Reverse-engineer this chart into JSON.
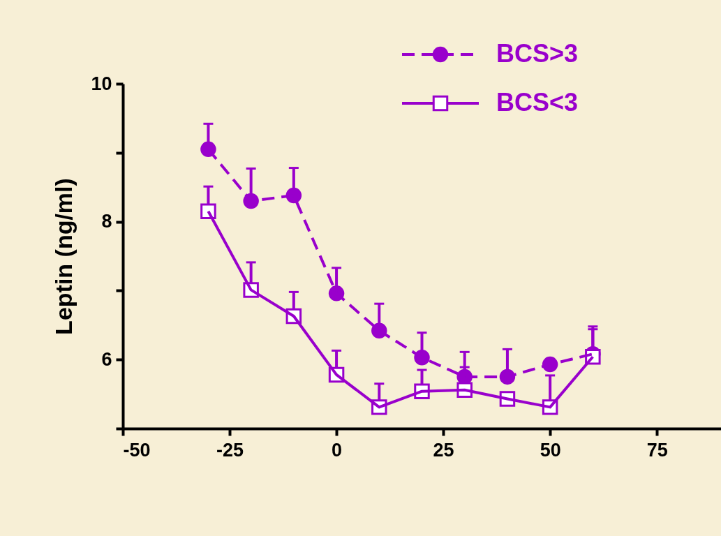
{
  "chart_data": {
    "type": "line",
    "ylabel": "Leptin (ng/ml)",
    "x": [
      -30,
      -20,
      -10,
      0,
      10,
      20,
      30,
      40,
      50,
      60
    ],
    "xlim": [
      -50,
      90
    ],
    "xticks": [
      -50,
      -25,
      0,
      25,
      50,
      75
    ],
    "ylim": [
      5,
      10
    ],
    "yticks": [
      {
        "value": 5,
        "label": null
      },
      6,
      {
        "value": 7,
        "label": null
      },
      8,
      {
        "value": 9,
        "label": null
      },
      10
    ],
    "grid": false,
    "legend": "top right",
    "series": [
      {
        "name": "BCS>3",
        "color": "#9900cc",
        "marker": "circle",
        "line_style": "dashed",
        "values": [
          9.05,
          8.3,
          8.38,
          6.96,
          6.42,
          6.03,
          5.75,
          5.75,
          5.93,
          6.08
        ],
        "errors": [
          [
            9.05,
            9.42
          ],
          [
            8.3,
            8.77
          ],
          [
            8.38,
            8.78
          ],
          [
            6.96,
            7.33
          ],
          [
            6.42,
            6.81
          ],
          [
            6.03,
            6.39
          ],
          [
            5.75,
            6.11
          ],
          [
            5.75,
            6.15
          ],
          null,
          [
            6.08,
            6.48
          ]
        ]
      },
      {
        "name": "BCS<3",
        "color": "#9900cc",
        "marker": "square",
        "line_style": "solid",
        "values": [
          8.15,
          7.01,
          6.63,
          5.78,
          5.31,
          5.54,
          5.56,
          5.43,
          5.31,
          6.04
        ],
        "errors": [
          [
            8.15,
            8.51
          ],
          [
            7.01,
            7.41
          ],
          [
            6.63,
            6.98
          ],
          [
            5.78,
            6.13
          ],
          [
            5.31,
            5.65
          ],
          [
            5.54,
            5.85
          ],
          [
            5.56,
            5.89
          ],
          null,
          [
            5.31,
            5.77
          ],
          [
            6.04,
            6.44
          ]
        ]
      }
    ]
  }
}
